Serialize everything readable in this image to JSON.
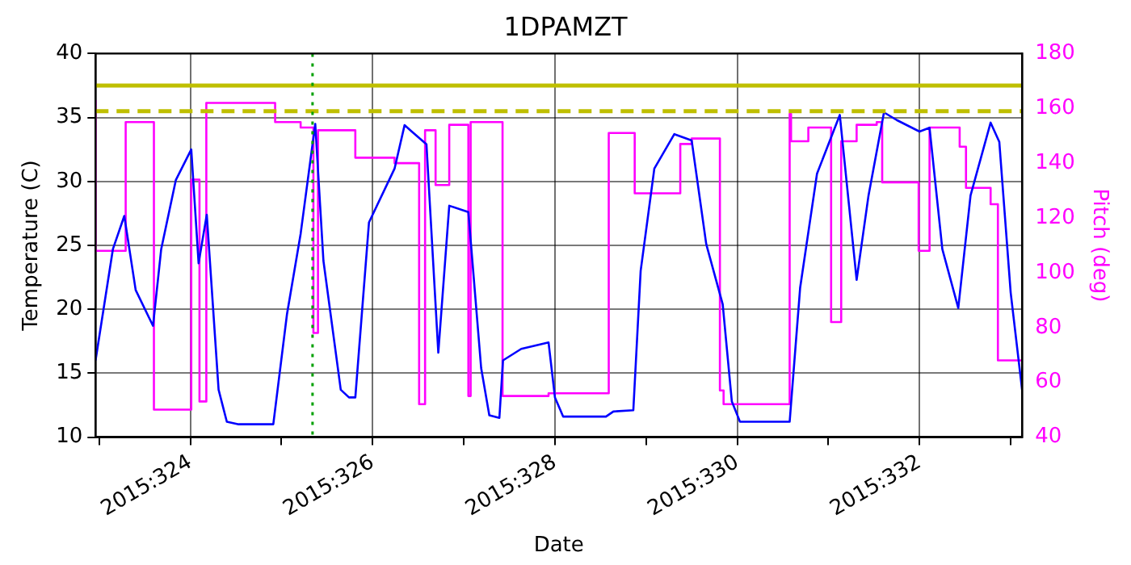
{
  "chart_data": {
    "type": "line",
    "title": "1DPAMZT",
    "xlabel": "Date",
    "ylabel": "Temperature (C)",
    "y2label": "Pitch (deg)",
    "xlim": [
      "2015-11-18T23:02",
      "2015-11-29T03:00"
    ],
    "xticks": [
      {
        "value": "2015-11-19",
        "label": null
      },
      {
        "value": "2015-11-20",
        "label": "2015:324"
      },
      {
        "value": "2015-11-21",
        "label": null
      },
      {
        "value": "2015-11-22",
        "label": "2015:326"
      },
      {
        "value": "2015-11-23",
        "label": null
      },
      {
        "value": "2015-11-24",
        "label": "2015:328"
      },
      {
        "value": "2015-11-25",
        "label": null
      },
      {
        "value": "2015-11-26",
        "label": "2015:330"
      },
      {
        "value": "2015-11-27",
        "label": null
      },
      {
        "value": "2015-11-28",
        "label": "2015:332"
      },
      {
        "value": "2015-11-29",
        "label": null
      }
    ],
    "ylim": [
      10,
      40
    ],
    "yticks": [
      10,
      15,
      20,
      25,
      30,
      35,
      40
    ],
    "y2lim": [
      40,
      180
    ],
    "y2ticks": [
      40,
      60,
      80,
      100,
      120,
      140,
      160,
      180
    ],
    "grid": true,
    "marker": "none",
    "line_style": "solid",
    "series": [
      {
        "color": "#0000ff",
        "x": [
          "2015-11-18T23:02",
          "2015-11-19T03:36",
          "2015-11-19T06:36",
          "2015-11-19T09:36",
          "2015-11-19T14:10",
          "2015-11-19T16:19",
          "2015-11-19T20:10",
          "2015-11-20T00:14",
          "2015-11-20T02:10",
          "2015-11-20T04:19",
          "2015-11-20T07:26",
          "2015-11-20T09:36",
          "2015-11-20T12:43",
          "2015-11-20T21:50",
          "2015-11-21T01:26",
          "2015-11-21T05:02",
          "2015-11-21T08:53",
          "2015-11-21T11:02",
          "2015-11-21T15:36",
          "2015-11-21T17:46",
          "2015-11-21T19:26",
          "2015-11-21T23:02",
          "2015-11-22T05:46",
          "2015-11-22T08:24",
          "2015-11-22T14:10",
          "2015-11-22T17:17",
          "2015-11-22T20:10",
          "2015-11-23T01:12",
          "2015-11-23T04:34",
          "2015-11-23T06:43",
          "2015-11-23T09:22",
          "2015-11-23T10:19",
          "2015-11-23T15:07",
          "2015-11-23T22:19",
          "2015-11-24T00:00",
          "2015-11-24T02:10",
          "2015-11-24T13:26",
          "2015-11-24T15:22",
          "2015-11-24T20:38",
          "2015-11-24T22:34",
          "2015-11-25T02:10",
          "2015-11-25T07:26",
          "2015-11-25T12:00",
          "2015-11-25T15:50",
          "2015-11-25T20:10",
          "2015-11-25T22:34",
          "2015-11-26T00:43",
          "2015-11-26T13:48",
          "2015-11-26T16:34",
          "2015-11-26T21:00",
          "2015-11-27T03:00",
          "2015-11-27T07:26",
          "2015-11-27T10:34",
          "2015-11-27T14:38",
          "2015-11-27T18:00",
          "2015-11-28T00:00",
          "2015-11-28T02:38",
          "2015-11-28T06:00",
          "2015-11-28T10:12",
          "2015-11-28T13:26",
          "2015-11-28T18:43",
          "2015-11-28T21:00",
          "2015-11-29T00:00",
          "2015-11-29T03:00"
        ],
        "values": [
          16,
          24.7,
          27.3,
          21.5,
          18.7,
          24.7,
          30.1,
          32.5,
          23.6,
          27.4,
          13.7,
          11.2,
          11.0,
          11.0,
          19.6,
          25.9,
          34.5,
          23.8,
          13.7,
          13.1,
          13.1,
          26.8,
          31.0,
          34.4,
          32.9,
          16.6,
          28.1,
          27.6,
          15.4,
          11.7,
          11.5,
          16.0,
          16.9,
          17.4,
          13.1,
          11.6,
          11.6,
          12.0,
          12.1,
          23.0,
          31.0,
          33.7,
          33.2,
          25.1,
          20.4,
          12.8,
          11.2,
          11.2,
          21.7,
          30.6,
          35.2,
          22.3,
          28.9,
          35.4,
          34.8,
          33.9,
          34.2,
          24.7,
          20.1,
          28.9,
          34.6,
          33.1,
          21.3,
          13.7
        ]
      },
      {
        "type": "step",
        "axis": "y2",
        "color": "#ff00ff",
        "x": [
          "2015-11-18T23:02",
          "2015-11-19T06:58",
          "2015-11-19T14:24",
          "2015-11-20T00:14",
          "2015-11-20T02:24",
          "2015-11-20T04:12",
          "2015-11-20T22:19",
          "2015-11-21T05:02",
          "2015-11-21T08:24",
          "2015-11-21T09:36",
          "2015-11-21T19:26",
          "2015-11-22T05:46",
          "2015-11-22T12:14",
          "2015-11-22T13:48",
          "2015-11-22T16:34",
          "2015-11-22T20:10",
          "2015-11-23T01:12",
          "2015-11-23T01:48",
          "2015-11-23T10:12",
          "2015-11-23T22:19",
          "2015-11-24T14:10",
          "2015-11-24T21:00",
          "2015-11-25T09:00",
          "2015-11-25T12:00",
          "2015-11-25T19:26",
          "2015-11-25T20:24",
          "2015-11-26T13:48",
          "2015-11-26T14:10",
          "2015-11-26T18:43",
          "2015-11-27T00:43",
          "2015-11-27T03:22",
          "2015-11-27T07:26",
          "2015-11-27T12:43",
          "2015-11-27T14:10",
          "2015-11-27T23:46",
          "2015-11-28T02:38",
          "2015-11-28T10:34",
          "2015-11-28T12:14",
          "2015-11-28T18:43",
          "2015-11-28T20:38",
          "2015-11-28T21:22",
          "2015-11-29T03:00"
        ],
        "values": [
          163,
          108,
          155,
          50,
          134,
          53,
          162,
          155,
          153,
          78,
          152,
          142,
          140,
          52,
          152,
          132,
          154,
          55,
          155,
          55,
          56,
          151,
          129,
          147,
          149,
          57,
          52,
          158,
          148,
          153,
          82,
          148,
          154,
          155,
          133,
          108,
          153,
          146,
          131,
          125,
          68,
          68
        ]
      }
    ],
    "ref_lines": [
      {
        "axis": "y",
        "value": 37.5,
        "color": "#bfbf00",
        "line_style": "solid"
      },
      {
        "axis": "y",
        "value": 35.5,
        "color": "#bfbf00",
        "line_style": "dashed"
      },
      {
        "axis": "x",
        "value": "2015-11-21T08:10",
        "color": "#00a000",
        "line_style": "dotted"
      }
    ]
  }
}
